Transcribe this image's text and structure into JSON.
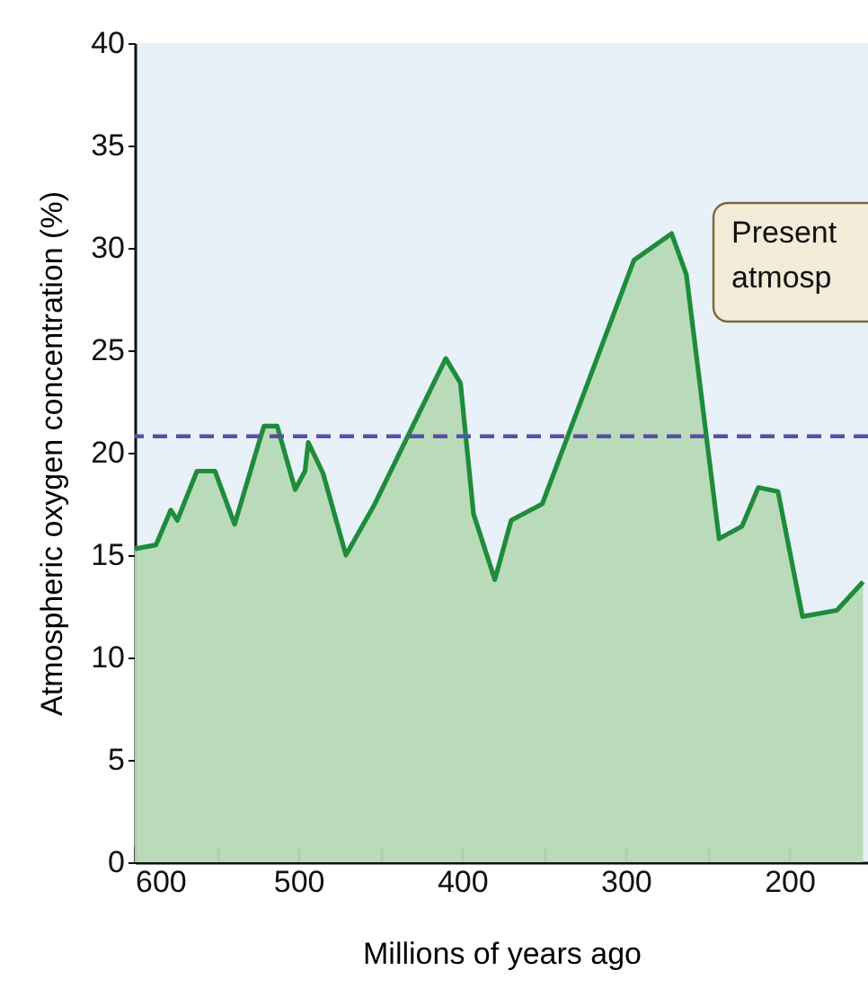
{
  "chart_data": {
    "type": "area",
    "xlabel": "Millions of years ago",
    "ylabel": "Atmospheric oxygen concentration (%)",
    "x": [
      600,
      587,
      578,
      574,
      562,
      551,
      539,
      523,
      521,
      513,
      502,
      496,
      494,
      485,
      471,
      454,
      410,
      401,
      393,
      380,
      370,
      351,
      295,
      272,
      263,
      243,
      229,
      219,
      207,
      192,
      171,
      155
    ],
    "series": [
      {
        "color": "#1e8c3a",
        "values": [
          15.3,
          15.5,
          17.2,
          16.7,
          19.1,
          19.1,
          16.5,
          20.8,
          21.3,
          21.3,
          18.2,
          19.1,
          20.5,
          19.0,
          15.0,
          17.4,
          24.6,
          23.4,
          17.0,
          13.8,
          16.7,
          17.5,
          29.4,
          30.7,
          28.7,
          15.8,
          16.4,
          18.3,
          18.1,
          12.0,
          12.3,
          13.7
        ]
      }
    ],
    "xlim": [
      600,
      152
    ],
    "ylim": [
      0,
      40
    ],
    "xticks": [
      600,
      {
        "value": 550,
        "label": null
      },
      500,
      {
        "value": 450,
        "label": null
      },
      400,
      {
        "value": 350,
        "label": null
      },
      300,
      {
        "value": 250,
        "label": null
      },
      200
    ],
    "yticks": [
      0,
      5,
      10,
      15,
      20,
      25,
      30,
      35,
      40
    ],
    "annotations": [
      "Present\natmosp"
    ],
    "ref_lines": [
      {
        "axis": "y",
        "value": 20.8,
        "color": "#5a4fa8",
        "line_style": "dashed"
      }
    ]
  }
}
